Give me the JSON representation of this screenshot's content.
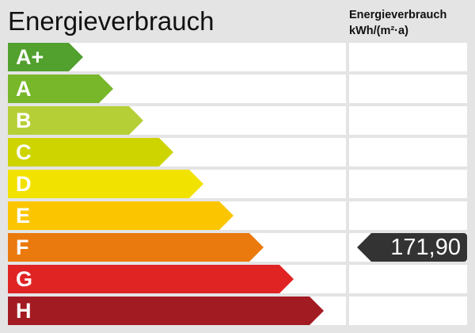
{
  "header": {
    "title": "Energieverbrauch",
    "column_title": "Energieverbrauch",
    "column_unit": "kWh/(m²·a)"
  },
  "classes": [
    {
      "label": "A+",
      "color": "#52a02e"
    },
    {
      "label": "A",
      "color": "#78b62a"
    },
    {
      "label": "B",
      "color": "#b5cf36"
    },
    {
      "label": "C",
      "color": "#cdd400"
    },
    {
      "label": "D",
      "color": "#f2e200"
    },
    {
      "label": "E",
      "color": "#fbc600"
    },
    {
      "label": "F",
      "color": "#ea7a0d"
    },
    {
      "label": "G",
      "color": "#e02424"
    },
    {
      "label": "H",
      "color": "#a31b22"
    }
  ],
  "value": {
    "text": "171,90",
    "class": "F",
    "color": "#333333"
  }
}
